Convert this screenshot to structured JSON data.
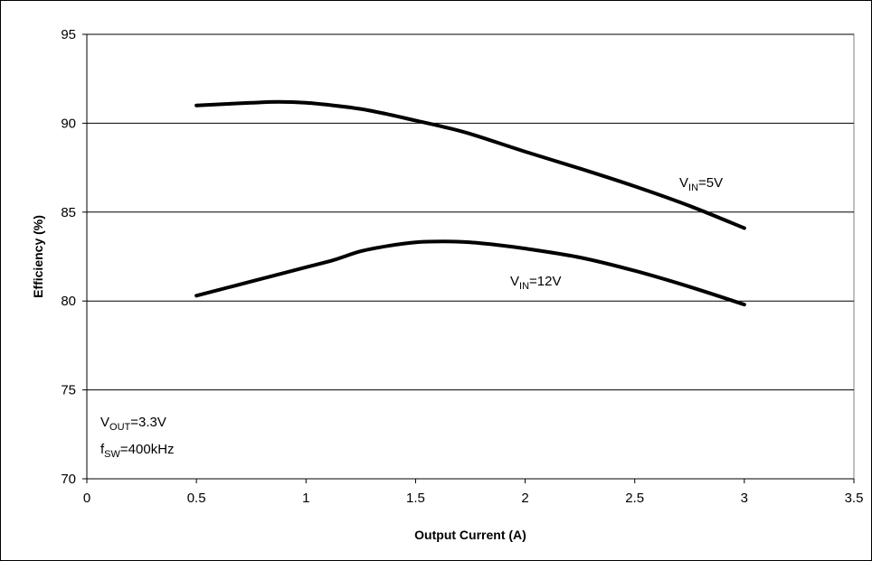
{
  "chart_data": {
    "type": "line",
    "title": "",
    "xlabel": "Output Current (A)",
    "ylabel": "Efficiency (%)",
    "xlim": [
      0,
      3.5
    ],
    "ylim": [
      70,
      95
    ],
    "x_ticks": [
      "0",
      "0.5",
      "1",
      "1.5",
      "2",
      "2.5",
      "3",
      "3.5"
    ],
    "y_ticks": [
      "70",
      "75",
      "80",
      "85",
      "90",
      "95"
    ],
    "grid": "horizontal",
    "series": [
      {
        "label_main": "V",
        "label_sub": "IN",
        "label_rest": "=5V",
        "color": "#000000",
        "x": [
          0.5,
          0.75,
          0.875,
          1.0,
          1.125,
          1.25,
          1.375,
          1.5,
          1.625,
          1.75,
          2.0,
          2.25,
          2.5,
          2.75,
          3.0
        ],
        "y": [
          91.0,
          91.15,
          91.2,
          91.15,
          91.0,
          90.8,
          90.5,
          90.15,
          89.8,
          89.4,
          88.4,
          87.45,
          86.45,
          85.35,
          84.1
        ]
      },
      {
        "label_main": "V",
        "label_sub": "IN",
        "label_rest": "=12V",
        "color": "#000000",
        "x": [
          0.5,
          0.75,
          1.0,
          1.125,
          1.25,
          1.375,
          1.5,
          1.625,
          1.75,
          1.875,
          2.0,
          2.25,
          2.5,
          2.75,
          3.0
        ],
        "y": [
          80.3,
          81.1,
          81.9,
          82.3,
          82.8,
          83.1,
          83.3,
          83.35,
          83.3,
          83.15,
          82.95,
          82.45,
          81.7,
          80.8,
          79.8
        ]
      }
    ],
    "annotations": [
      {
        "main": "V",
        "sub": "OUT",
        "rest": "=3.3V"
      },
      {
        "main": "f",
        "sub": "SW",
        "rest": "=400kHz"
      }
    ]
  }
}
